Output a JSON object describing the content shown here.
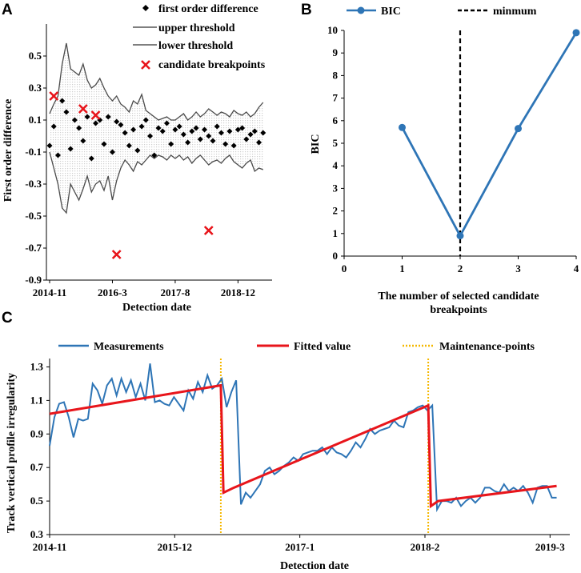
{
  "chart_data": [
    {
      "panel": "A",
      "type": "scatter",
      "xlabel": "Detection date",
      "ylabel": "First order difference",
      "ylim": [
        -0.9,
        0.7
      ],
      "yticks": [
        -0.9,
        -0.7,
        -0.5,
        -0.3,
        -0.1,
        0.1,
        0.3,
        0.5
      ],
      "ytick_labels": [
        "-0.9",
        "-0.7",
        "-0.5",
        "-0.3",
        "-0.1",
        "0.1",
        "0.3",
        "0.5"
      ],
      "xlim": [
        0,
        52
      ],
      "xticks": [
        0,
        15,
        30,
        45
      ],
      "xtick_labels": [
        "2014-11",
        "2016-3",
        "2017-8",
        "2018-12"
      ],
      "legend": {
        "diff": "first order difference",
        "upper": "upper threshold",
        "lower": "lower threshold",
        "cand": "candidate breakpoints"
      },
      "series": [
        {
          "name": "first order difference",
          "y": [
            -0.06,
            0.06,
            -0.12,
            0.22,
            0.15,
            -0.08,
            0.1,
            0.05,
            -0.03,
            0.12,
            -0.14,
            0.08,
            0.1,
            -0.05,
            0.12,
            -0.1,
            0.09,
            0.07,
            0.02,
            -0.06,
            0.04,
            -0.09,
            0.06,
            0.1,
            0.0,
            -0.12,
            0.05,
            0.03,
            0.08,
            -0.05,
            0.04,
            0.06,
            0.01,
            -0.04,
            0.03,
            0.05,
            -0.02,
            0.04,
            0.0,
            -0.03,
            0.06,
            0.02,
            -0.05,
            0.03,
            -0.06,
            0.04,
            0.05,
            -0.02,
            0.01,
            0.03,
            -0.04,
            0.02
          ]
        },
        {
          "name": "upper threshold",
          "y": [
            0.14,
            0.2,
            0.25,
            0.45,
            0.58,
            0.42,
            0.4,
            0.38,
            0.45,
            0.35,
            0.3,
            0.32,
            0.36,
            0.3,
            0.25,
            0.22,
            0.25,
            0.2,
            0.18,
            0.15,
            0.22,
            0.2,
            0.26,
            0.16,
            0.14,
            0.12,
            0.1,
            0.11,
            0.12,
            0.1,
            0.1,
            0.12,
            0.14,
            0.1,
            0.12,
            0.15,
            0.12,
            0.14,
            0.17,
            0.15,
            0.13,
            0.15,
            0.14,
            0.12,
            0.16,
            0.14,
            0.13,
            0.15,
            0.12,
            0.14,
            0.18,
            0.21
          ]
        },
        {
          "name": "lower threshold",
          "y": [
            -0.1,
            -0.2,
            -0.3,
            -0.45,
            -0.48,
            -0.3,
            -0.35,
            -0.4,
            -0.33,
            -0.25,
            -0.35,
            -0.3,
            -0.28,
            -0.34,
            -0.25,
            -0.4,
            -0.28,
            -0.2,
            -0.15,
            -0.18,
            -0.22,
            -0.16,
            -0.18,
            -0.15,
            -0.12,
            -0.14,
            -0.12,
            -0.13,
            -0.15,
            -0.12,
            -0.14,
            -0.12,
            -0.15,
            -0.13,
            -0.17,
            -0.14,
            -0.12,
            -0.15,
            -0.18,
            -0.16,
            -0.15,
            -0.17,
            -0.14,
            -0.12,
            -0.16,
            -0.18,
            -0.2,
            -0.17,
            -0.15,
            -0.22,
            -0.2,
            -0.21
          ]
        },
        {
          "name": "candidate breakpoints",
          "points": [
            [
              1,
              0.25
            ],
            [
              8,
              0.17
            ],
            [
              11,
              0.13
            ],
            [
              16,
              -0.74
            ],
            [
              38,
              -0.59
            ]
          ]
        }
      ]
    },
    {
      "panel": "B",
      "type": "line",
      "xlabel": "The number of selected candidate breakpoints",
      "ylabel": "BIC",
      "xlim": [
        0,
        4
      ],
      "ylim": [
        0,
        10
      ],
      "xticks": [
        0,
        1,
        2,
        3,
        4
      ],
      "yticks": [
        0,
        1,
        2,
        3,
        4,
        5,
        6,
        7,
        8,
        9,
        10
      ],
      "legend": {
        "bic": "BIC",
        "min": "minmum"
      },
      "series": [
        {
          "name": "BIC",
          "x": [
            1,
            2,
            3,
            4
          ],
          "y": [
            5.7,
            0.9,
            5.65,
            9.9
          ]
        }
      ],
      "minimum_x": 2
    },
    {
      "panel": "C",
      "type": "line",
      "xlabel": "Detection date",
      "ylabel": "Track vertical profile irregularity",
      "ylim": [
        0.3,
        1.35
      ],
      "yticks": [
        0.3,
        0.5,
        0.7,
        0.9,
        1.1,
        1.3
      ],
      "xlim": [
        0,
        79
      ],
      "xticks": [
        0,
        19,
        38,
        57,
        76
      ],
      "xtick_labels": [
        "2014-11",
        "2015-12",
        "2017-1",
        "2018-2",
        "2019-3"
      ],
      "legend": {
        "meas": "Measurements",
        "fit": "Fitted value",
        "maint": "Maintenance-points"
      },
      "maintenance_points": [
        26,
        57.5
      ],
      "series": [
        {
          "name": "Measurements",
          "y": [
            0.83,
            1.0,
            1.08,
            1.09,
            1.0,
            0.88,
            0.99,
            0.98,
            0.99,
            1.2,
            1.16,
            1.08,
            1.19,
            1.23,
            1.13,
            1.23,
            1.15,
            1.22,
            1.12,
            1.2,
            1.1,
            1.32,
            1.09,
            1.1,
            1.08,
            1.07,
            1.12,
            1.08,
            1.04,
            1.16,
            1.11,
            1.21,
            1.15,
            1.25,
            1.17,
            1.19,
            1.23,
            1.06,
            1.15,
            1.22,
            0.48,
            0.55,
            0.52,
            0.56,
            0.6,
            0.68,
            0.7,
            0.66,
            0.68,
            0.71,
            0.73,
            0.76,
            0.74,
            0.78,
            0.79,
            0.8,
            0.8,
            0.82,
            0.78,
            0.82,
            0.79,
            0.78,
            0.76,
            0.8,
            0.85,
            0.82,
            0.87,
            0.93,
            0.9,
            0.92,
            0.93,
            0.94,
            0.98,
            0.95,
            0.94,
            1.03,
            1.04,
            1.06,
            1.07,
            1.04,
            1.07,
            0.45,
            0.5,
            0.5,
            0.49,
            0.52,
            0.47,
            0.5,
            0.52,
            0.49,
            0.52,
            0.58,
            0.58,
            0.56,
            0.55,
            0.6,
            0.56,
            0.58,
            0.56,
            0.59,
            0.55,
            0.49,
            0.58,
            0.59,
            0.59,
            0.52,
            0.52
          ]
        },
        {
          "name": "Fitted value",
          "points": [
            [
              0,
              1.02
            ],
            [
              26,
              1.19
            ],
            [
              26.4,
              0.55
            ],
            [
              28,
              0.58
            ],
            [
              57.5,
              1.07
            ],
            [
              57.9,
              0.47
            ],
            [
              59,
              0.5
            ],
            [
              77,
              0.59
            ]
          ]
        }
      ]
    }
  ],
  "panels": {
    "a": "A",
    "b": "B",
    "c": "C"
  }
}
